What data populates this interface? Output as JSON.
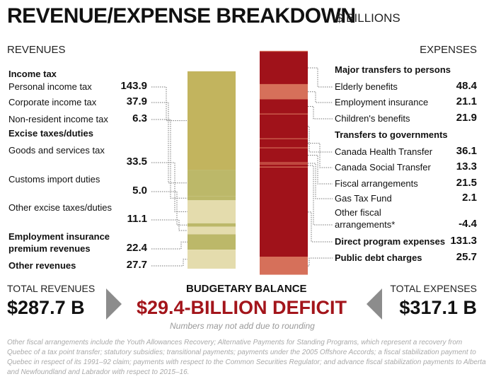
{
  "title": "REVENUE/EXPENSE BREAKDOWN",
  "unit": "$ BILLIONS",
  "revenues_header": "REVENUES",
  "expenses_header": "EXPENSES",
  "totals": {
    "revenue_label": "TOTAL REVENUES",
    "revenue_value": "$287.7 B",
    "balance_label": "BUDGETARY BALANCE",
    "balance_value": "$29.4-BILLION DEFICIT",
    "rounding_note": "Numbers may not add due to rounding",
    "expense_label": "TOTAL EXPENSES",
    "expense_value": "$317.1 B"
  },
  "footnote": "Other fiscal arrangements include the Youth Allowances Recovery; Alternative Payments for Standing Programs, which represent a recovery from Quebec of a tax point transfer; statutory subsidies; transitional payments; payments under the 2005 Offshore Accords; a fiscal stabilization payment to Quebec in respect of its 1991–92 claim; payments with respect to the Common Securities Regulator; and advance fiscal stabilization payments to Alberta and Newfoundland and Labrador with respect to 2015–16.",
  "chart_data": {
    "type": "stacked-bar",
    "colors": {
      "revenue_dark": "#c2b45e",
      "revenue_mid": "#bcb869",
      "revenue_light": "#e4dcad",
      "expense_light": "#d6705a",
      "expense_dark": "#a0121a",
      "deficit_red": "#a3151b"
    },
    "revenues": [
      {
        "label": "Income tax",
        "bold": true,
        "value": null
      },
      {
        "label": "Personal income tax",
        "bold": false,
        "value": 143.9,
        "display": "143.9",
        "color": "revenue_dark"
      },
      {
        "label": "Corporate income tax",
        "bold": false,
        "value": 37.9,
        "display": "37.9",
        "color": "revenue_mid"
      },
      {
        "label": "Non-resident income tax",
        "bold": false,
        "value": 6.3,
        "display": "6.3",
        "color": "revenue_mid"
      },
      {
        "label": "Excise taxes/duties",
        "bold": true,
        "value": null
      },
      {
        "label": "Goods and services tax",
        "bold": false,
        "value": 33.5,
        "display": "33.5",
        "color": "revenue_light"
      },
      {
        "label": "Customs import duties",
        "bold": false,
        "value": 5.0,
        "display": "5.0",
        "color": "revenue_mid"
      },
      {
        "label": "Other excise taxes/duties",
        "bold": false,
        "value": 11.1,
        "display": "11.1",
        "color": "revenue_light"
      },
      {
        "label": "Employment insurance premium revenues",
        "bold": true,
        "value": 22.4,
        "display": "22.4",
        "color": "revenue_mid"
      },
      {
        "label": "Other revenues",
        "bold": true,
        "value": 27.7,
        "display": "27.7",
        "color": "revenue_light"
      }
    ],
    "expenses": [
      {
        "label": "Major transfers to persons",
        "bold": true,
        "value": null
      },
      {
        "label": "Elderly benefits",
        "bold": false,
        "value": 48.4,
        "display": "48.4",
        "color": "expense_dark"
      },
      {
        "label": "Employment insurance",
        "bold": false,
        "value": 21.1,
        "display": "21.1",
        "color": "expense_light"
      },
      {
        "label": "Children's benefits",
        "bold": false,
        "value": 21.9,
        "display": "21.9",
        "color": "expense_dark"
      },
      {
        "label": "Transfers to governments",
        "bold": true,
        "value": null
      },
      {
        "label": "Canada Health Transfer",
        "bold": false,
        "value": 36.1,
        "display": "36.1",
        "color": "expense_dark"
      },
      {
        "label": "Canada Social Transfer",
        "bold": false,
        "value": 13.3,
        "display": "13.3",
        "color": "expense_dark"
      },
      {
        "label": "Fiscal arrangements",
        "bold": false,
        "value": 21.5,
        "display": "21.5",
        "color": "expense_dark"
      },
      {
        "label": "Gas Tax Fund",
        "bold": false,
        "value": 2.1,
        "display": "2.1",
        "color": "expense_dark"
      },
      {
        "label": "Other fiscal arrangements*",
        "bold": false,
        "value": -4.4,
        "display": "-4.4",
        "color": "expense_dark"
      },
      {
        "label": "Direct program expenses",
        "bold": true,
        "value": 131.3,
        "display": "131.3",
        "color": "expense_dark"
      },
      {
        "label": "Public debt charges",
        "bold": true,
        "value": 25.7,
        "display": "25.7",
        "color": "expense_light"
      }
    ],
    "deficit": 29.4
  }
}
